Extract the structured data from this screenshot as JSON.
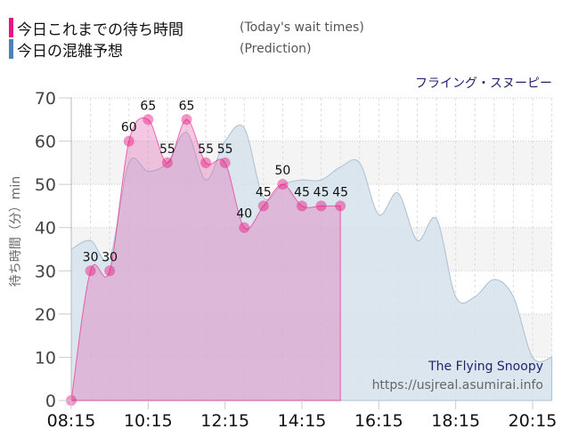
{
  "legend": {
    "today": {
      "label": "今日これまでの待ち時間",
      "label_en": "(Today's wait times)",
      "color": "#e8157f"
    },
    "prediction": {
      "label": "今日の混雑予想",
      "label_en": "(Prediction)",
      "color": "#4b83b4"
    }
  },
  "ride_name": "フライング・スヌーピー",
  "y_axis_label": "待ち時間（分）min",
  "credits": {
    "line1": "The Flying Snoopy",
    "line2": "https://usjreal.asumirai.info"
  },
  "chart_data": {
    "type": "area",
    "title": "フライング・スヌーピー",
    "xlabel": "",
    "ylabel": "待ち時間（分）min",
    "ylim": [
      0,
      70
    ],
    "yticks": [
      0,
      10,
      20,
      30,
      40,
      50,
      60,
      70
    ],
    "xticks": [
      "08:15",
      "10:15",
      "12:15",
      "14:15",
      "16:15",
      "18:15",
      "20:15"
    ],
    "grid": true,
    "legend_position": "top-left",
    "series": [
      {
        "name": "今日これまでの待ち時間 (Today's wait times)",
        "color": "#e8157f",
        "x": [
          "08:15",
          "08:45",
          "09:15",
          "09:45",
          "10:15",
          "10:45",
          "11:15",
          "11:45",
          "12:15",
          "12:45",
          "13:15",
          "13:45",
          "14:15",
          "14:45",
          "15:15"
        ],
        "values": [
          0,
          30,
          30,
          60,
          65,
          55,
          65,
          55,
          55,
          40,
          45,
          50,
          45,
          45,
          45
        ]
      },
      {
        "name": "今日の混雑予想 (Prediction)",
        "color": "#4b83b4",
        "x": [
          "08:15",
          "08:45",
          "09:15",
          "09:45",
          "10:15",
          "10:45",
          "11:15",
          "11:45",
          "12:15",
          "12:45",
          "13:15",
          "13:45",
          "14:15",
          "14:45",
          "15:15",
          "15:45",
          "16:15",
          "16:45",
          "17:15",
          "17:45",
          "18:15",
          "18:45",
          "19:15",
          "19:45",
          "20:15",
          "20:45"
        ],
        "values": [
          35,
          37,
          33,
          55,
          53,
          55,
          62,
          51,
          60,
          63,
          47,
          50,
          51,
          51,
          54,
          55,
          43,
          48,
          37,
          42,
          24,
          24,
          28,
          24,
          10,
          10
        ]
      }
    ]
  }
}
